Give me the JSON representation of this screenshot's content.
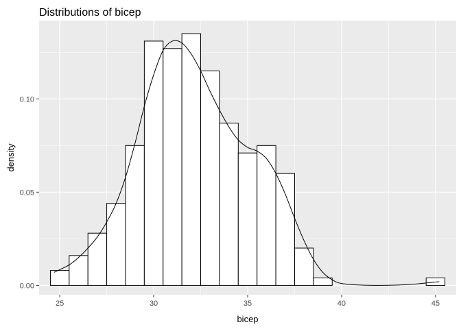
{
  "chart_data": {
    "type": "bar",
    "title": "Distributions of bicep",
    "xlabel": "bicep",
    "ylabel": "density",
    "xlim": [
      23.9,
      46.1
    ],
    "ylim": [
      -0.005,
      0.142
    ],
    "x_ticks": [
      25,
      30,
      35,
      40,
      45
    ],
    "y_ticks": [
      0.0,
      0.05,
      0.1
    ],
    "y_tick_labels": [
      "0.00",
      "0.05",
      "0.10"
    ],
    "grid": true,
    "legend": "none",
    "bar_fill": "#ffffff",
    "bar_outline": "#000000",
    "panel_background": "#ebebeb",
    "bins": [
      {
        "x": 25,
        "value": 0.008
      },
      {
        "x": 26,
        "value": 0.016
      },
      {
        "x": 27,
        "value": 0.028
      },
      {
        "x": 28,
        "value": 0.044
      },
      {
        "x": 29,
        "value": 0.075
      },
      {
        "x": 30,
        "value": 0.131
      },
      {
        "x": 31,
        "value": 0.127
      },
      {
        "x": 32,
        "value": 0.135
      },
      {
        "x": 33,
        "value": 0.115
      },
      {
        "x": 34,
        "value": 0.087
      },
      {
        "x": 35,
        "value": 0.071
      },
      {
        "x": 36,
        "value": 0.075
      },
      {
        "x": 37,
        "value": 0.06
      },
      {
        "x": 38,
        "value": 0.02
      },
      {
        "x": 39,
        "value": 0.004
      },
      {
        "x": 40,
        "value": 0.0
      },
      {
        "x": 41,
        "value": 0.0
      },
      {
        "x": 42,
        "value": 0.0
      },
      {
        "x": 43,
        "value": 0.0
      },
      {
        "x": 44,
        "value": 0.0
      },
      {
        "x": 45,
        "value": 0.004
      }
    ],
    "bin_width": 1,
    "density_curve": {
      "x": [
        24.7,
        25.5,
        26.0,
        26.5,
        27.0,
        27.5,
        28.0,
        28.5,
        29.0,
        29.5,
        30.0,
        30.5,
        31.0,
        31.5,
        32.0,
        32.5,
        33.0,
        33.5,
        34.0,
        34.5,
        35.0,
        35.5,
        36.0,
        36.5,
        37.0,
        37.5,
        38.0,
        38.5,
        39.0,
        39.5,
        40.0,
        41.0,
        42.0,
        43.0,
        44.0,
        44.7,
        45.2
      ],
      "y": [
        0.007,
        0.011,
        0.015,
        0.02,
        0.026,
        0.034,
        0.044,
        0.058,
        0.076,
        0.096,
        0.113,
        0.126,
        0.131,
        0.13,
        0.124,
        0.115,
        0.104,
        0.094,
        0.085,
        0.078,
        0.074,
        0.072,
        0.068,
        0.06,
        0.049,
        0.036,
        0.024,
        0.014,
        0.007,
        0.003,
        0.001,
        0.0002,
        0.0,
        0.0002,
        0.0008,
        0.0015,
        0.002
      ]
    }
  }
}
